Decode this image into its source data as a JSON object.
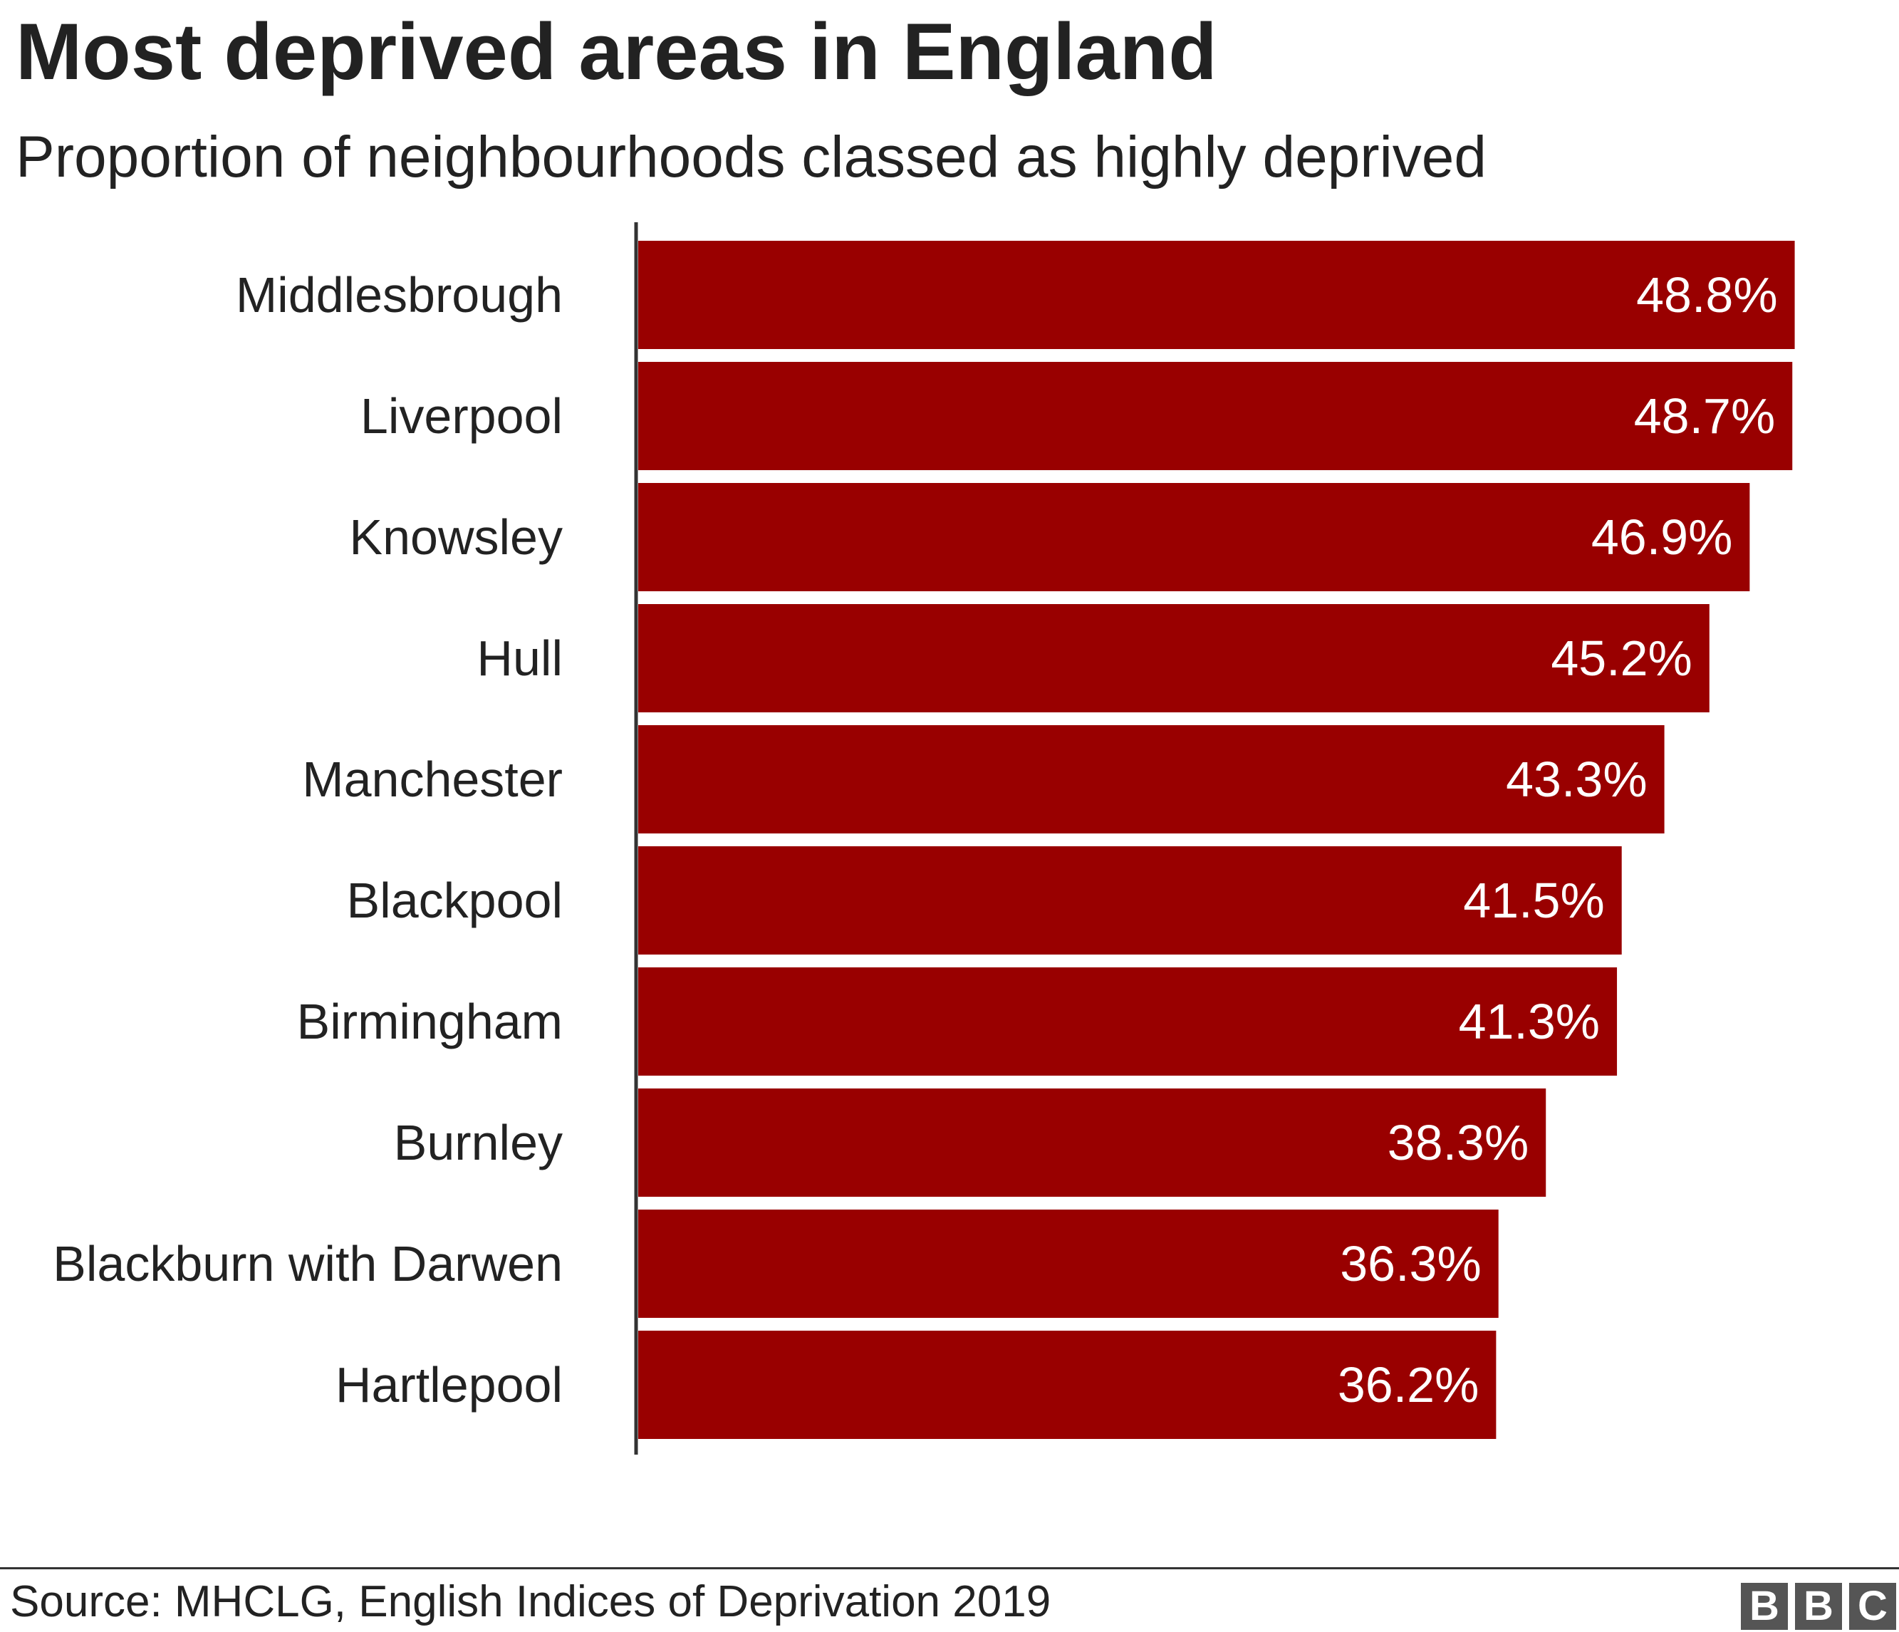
{
  "chart_data": {
    "type": "bar",
    "orientation": "horizontal",
    "title": "Most deprived areas in England",
    "subtitle": "Proportion of neighbourhoods classed as highly deprived",
    "categories": [
      "Middlesbrough",
      "Liverpool",
      "Knowsley",
      "Hull",
      "Manchester",
      "Blackpool",
      "Birmingham",
      "Burnley",
      "Blackburn with Darwen",
      "Hartlepool"
    ],
    "values": [
      48.8,
      48.7,
      46.9,
      45.2,
      43.3,
      41.5,
      41.3,
      38.3,
      36.3,
      36.2
    ],
    "value_labels": [
      "48.8%",
      "48.7%",
      "46.9%",
      "45.2%",
      "43.3%",
      "41.5%",
      "41.3%",
      "38.3%",
      "36.3%",
      "36.2%"
    ],
    "unit": "%",
    "xlim": [
      0,
      50
    ],
    "grid": false,
    "bar_color": "#990000"
  },
  "footer": {
    "source": "Source: MHCLG, English Indices of Deprivation 2019",
    "logo_letters": [
      "B",
      "B",
      "C"
    ]
  }
}
